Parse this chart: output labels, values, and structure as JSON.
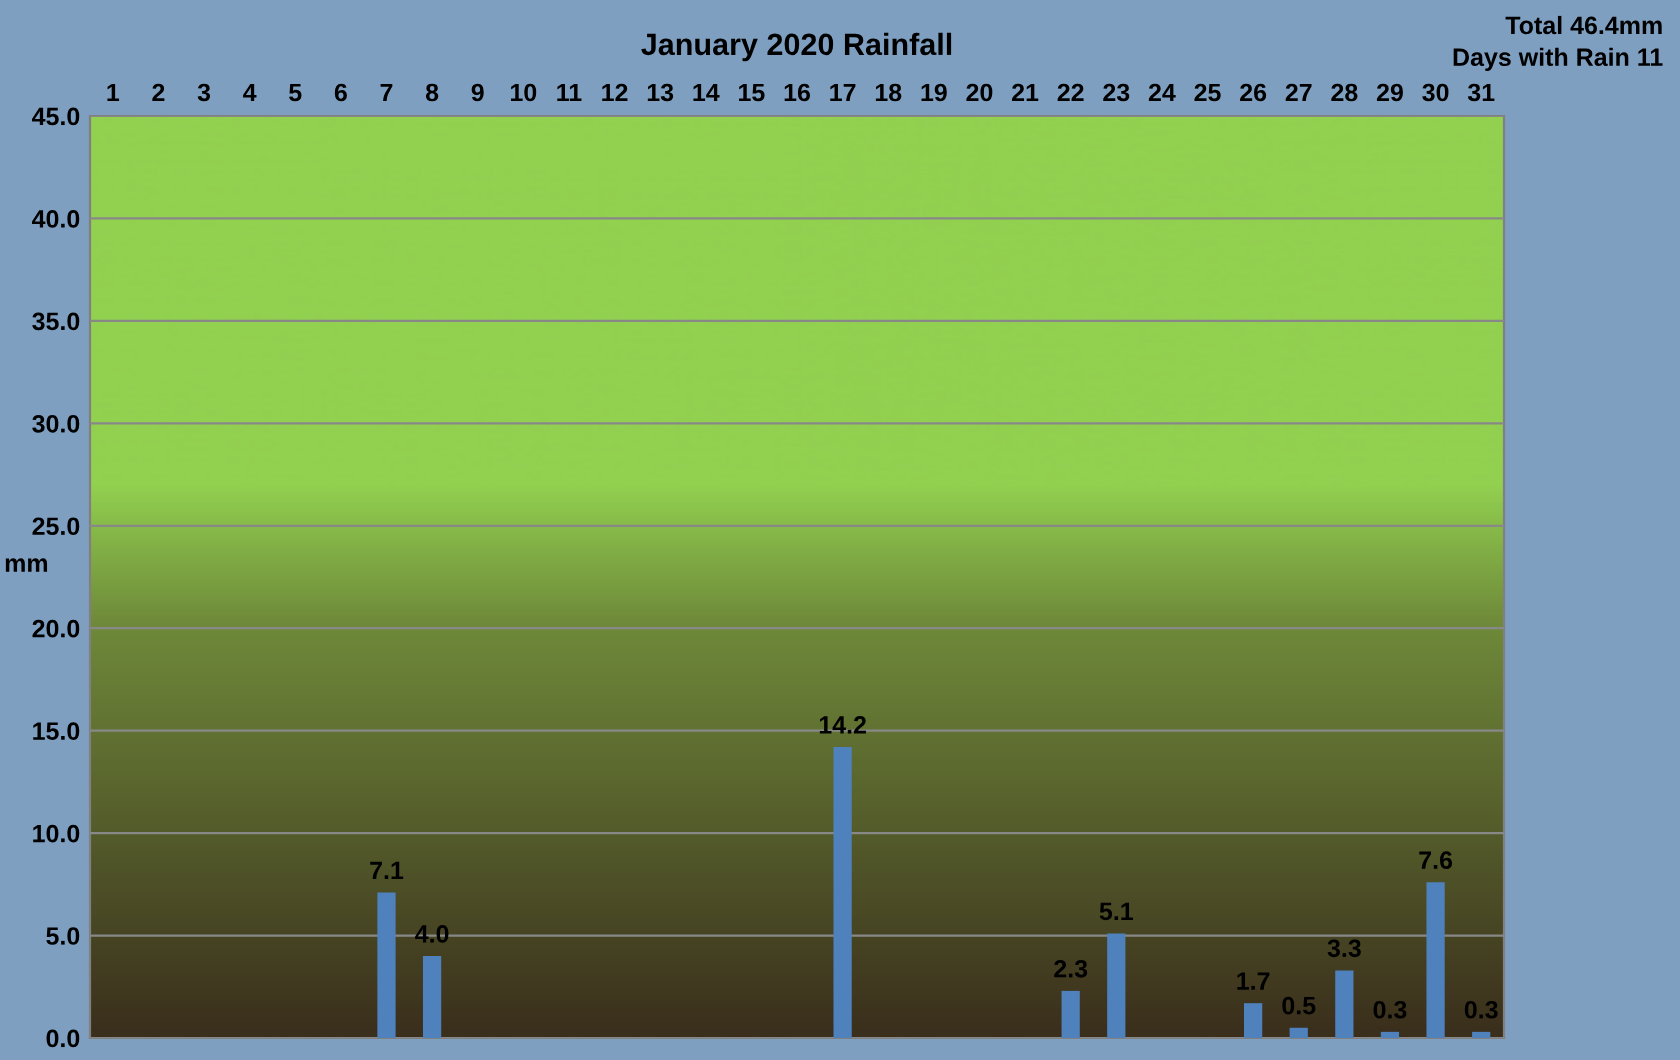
{
  "chart_data": {
    "type": "bar",
    "title": "January 2020 Rainfall",
    "ylabel": "mm",
    "categories": [
      "1",
      "2",
      "3",
      "4",
      "5",
      "6",
      "7",
      "8",
      "9",
      "10",
      "11",
      "12",
      "13",
      "14",
      "15",
      "16",
      "17",
      "18",
      "19",
      "20",
      "21",
      "22",
      "23",
      "24",
      "25",
      "26",
      "27",
      "28",
      "29",
      "30",
      "31"
    ],
    "values": [
      0,
      0,
      0,
      0,
      0,
      0,
      7.1,
      4.0,
      0,
      0,
      0,
      0,
      0,
      0,
      0,
      0,
      14.2,
      0,
      0,
      0,
      0,
      2.3,
      5.1,
      0,
      0,
      1.7,
      0.5,
      3.3,
      0.3,
      7.6,
      0.3
    ],
    "value_labels": [
      null,
      null,
      null,
      null,
      null,
      null,
      "7.1",
      "4.0",
      null,
      null,
      null,
      null,
      null,
      null,
      null,
      null,
      "14.2",
      null,
      null,
      null,
      null,
      "2.3",
      "5.1",
      null,
      null,
      "1.7",
      "0.5",
      "3.3",
      "0.3",
      "7.6",
      "0.3"
    ],
    "color": "#4f81bd",
    "ylim": [
      0,
      45
    ],
    "yticks": [
      {
        "value": 0,
        "label": "0.0"
      },
      {
        "value": 5,
        "label": "5.0"
      },
      {
        "value": 10,
        "label": "10.0"
      },
      {
        "value": 15,
        "label": "15.0"
      },
      {
        "value": 20,
        "label": "20.0"
      },
      {
        "value": 25,
        "label": "25.0"
      },
      {
        "value": 30,
        "label": "30.0"
      },
      {
        "value": 35,
        "label": "35.0"
      },
      {
        "value": 40,
        "label": "40.0"
      },
      {
        "value": 45,
        "label": "45.0"
      }
    ],
    "grid": "y",
    "legend": false,
    "annotations": [
      "Total 46.4mm",
      "Days with Rain 11"
    ]
  }
}
